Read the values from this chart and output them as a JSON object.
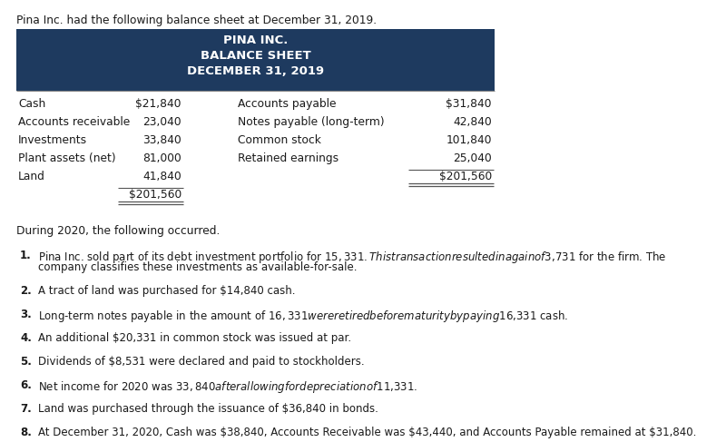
{
  "intro_text": "Pina Inc. had the following balance sheet at December 31, 2019.",
  "header_bg_color": "#1e3a5f",
  "header_text_color": "#ffffff",
  "header_lines": [
    "PINA INC.",
    "BALANCE SHEET",
    "DECEMBER 31, 2019"
  ],
  "assets": [
    [
      "Cash",
      "$21,840"
    ],
    [
      "Accounts receivable",
      "23,040"
    ],
    [
      "Investments",
      "33,840"
    ],
    [
      "Plant assets (net)",
      "81,000"
    ],
    [
      "Land",
      "41,840"
    ],
    [
      "",
      "$201,560"
    ]
  ],
  "liabilities": [
    [
      "Accounts payable",
      "$31,840"
    ],
    [
      "Notes payable (long-term)",
      "42,840"
    ],
    [
      "Common stock",
      "101,840"
    ],
    [
      "Retained earnings",
      "25,040"
    ],
    [
      "",
      "$201,560"
    ]
  ],
  "during_text": "During 2020, the following occurred.",
  "items": [
    [
      "Pina Inc. sold part of its debt investment portfolio for $15,331. This transaction resulted in a gain of $3,731 for the firm. The",
      "company classifies these investments as available-for-sale."
    ],
    [
      "A tract of land was purchased for $14,840 cash."
    ],
    [
      "Long-term notes payable in the amount of $16,331 were retired before maturity by paying $16,331 cash."
    ],
    [
      "An additional $20,331 in common stock was issued at par."
    ],
    [
      "Dividends of $8,531 were declared and paid to stockholders."
    ],
    [
      "Net income for 2020 was $33,840 after allowing for depreciation of $11,331."
    ],
    [
      "Land was purchased through the issuance of $36,840 in bonds."
    ],
    [
      "At December 31, 2020, Cash was $38,840, Accounts Receivable was $43,440, and Accounts Payable remained at $31,840."
    ]
  ],
  "bg_color": "#ffffff",
  "text_color": "#1a1a1a",
  "font_size_intro": 8.8,
  "font_size_header": 9.5,
  "font_size_table": 8.8,
  "font_size_body": 8.5,
  "font_size_during": 8.8
}
